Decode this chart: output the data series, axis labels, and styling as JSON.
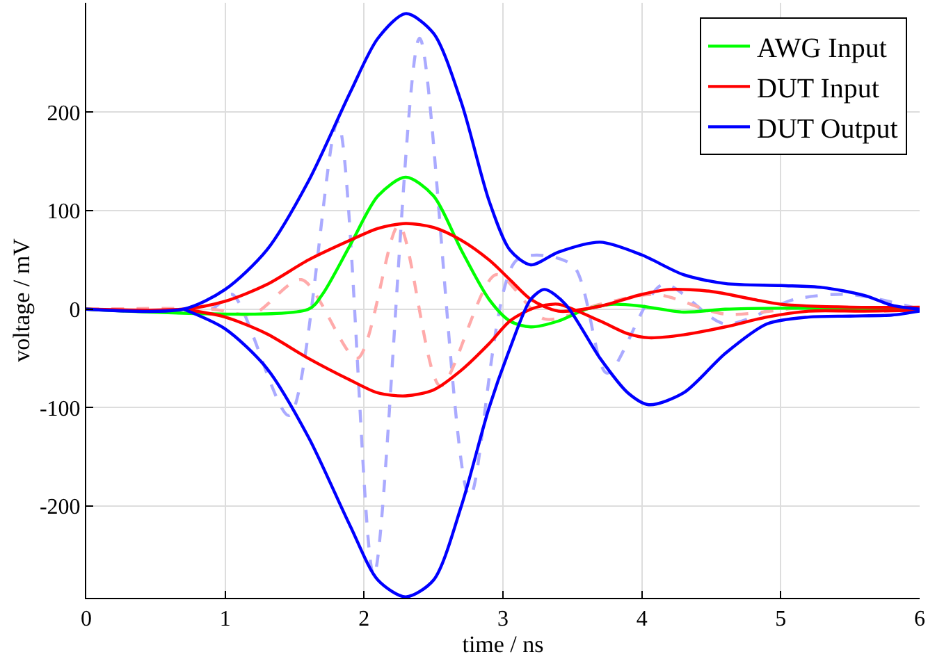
{
  "chart_data": {
    "type": "line",
    "xlabel": "time / ns",
    "ylabel": "voltage / mV",
    "xlim": [
      0,
      6
    ],
    "ylim": [
      -293,
      311
    ],
    "xticks": [
      0,
      1,
      2,
      3,
      4,
      5,
      6
    ],
    "yticks": [
      -200,
      -100,
      0,
      100,
      200
    ],
    "grid": true,
    "legend": "top right",
    "marker": "none",
    "line_style": "solid",
    "series": [
      {
        "color": "#aaaaff",
        "line_style": "dashed",
        "x": [
          0,
          0.9,
          1.05,
          1.46,
          1.81,
          2.07,
          2.4,
          2.76,
          3.1,
          3.5,
          3.75,
          4.15,
          4.6,
          5.1,
          5.5,
          6
        ],
        "values": [
          0,
          0,
          15,
          -108,
          190,
          -270,
          275,
          -190,
          50,
          45,
          -65,
          25,
          -15,
          10,
          15,
          0
        ]
      },
      {
        "color": "#ffaaaa",
        "line_style": "dashed",
        "x": [
          0,
          0.9,
          1.2,
          1.55,
          1.95,
          2.25,
          2.55,
          2.95,
          3.3,
          3.7,
          4.1,
          4.6,
          5.2,
          6
        ],
        "values": [
          0,
          0,
          -5,
          30,
          -50,
          85,
          -78,
          35,
          -10,
          5,
          15,
          -5,
          2,
          0
        ]
      },
      {
        "name": "AWG Input",
        "color": "#00ff00",
        "x": [
          0,
          1.6,
          1.7,
          1.9,
          2.1,
          2.3,
          2.5,
          2.7,
          2.9,
          3.05,
          3.2,
          3.4,
          3.6,
          3.8,
          4.0,
          4.3,
          4.6,
          5.0,
          6
        ],
        "values": [
          0,
          0,
          15,
          65,
          115,
          134,
          115,
          60,
          10,
          -12,
          -18,
          -12,
          0,
          5,
          3,
          -3,
          0,
          1,
          0
        ]
      },
      {
        "name": "DUT Input",
        "color": "#ff0000",
        "x": [
          0,
          0.7,
          1.0,
          1.3,
          1.6,
          1.9,
          2.1,
          2.3,
          2.5,
          2.7,
          2.9,
          3.05,
          3.2,
          3.4,
          3.7,
          4.0,
          4.2,
          4.5,
          4.8,
          5.0,
          5.5,
          6
        ],
        "values": [
          0,
          0,
          8,
          25,
          50,
          70,
          82,
          87,
          83,
          70,
          50,
          30,
          10,
          -2,
          3,
          15,
          20,
          18,
          10,
          5,
          2,
          2
        ]
      },
      {
        "color": "#ff0000",
        "x": [
          0.7,
          1.0,
          1.3,
          1.6,
          1.9,
          2.1,
          2.3,
          2.5,
          2.7,
          2.9,
          3.05,
          3.2,
          3.3,
          3.4,
          3.7,
          3.9,
          4.05,
          4.3,
          4.6,
          4.9,
          5.2,
          5.6,
          6
        ],
        "values": [
          0,
          -8,
          -25,
          -50,
          -72,
          -85,
          -88,
          -82,
          -62,
          -35,
          -12,
          0,
          4,
          5,
          -12,
          -25,
          -29,
          -26,
          -18,
          -8,
          -2,
          -2,
          -1
        ]
      },
      {
        "name": "DUT Output",
        "color": "#0000ff",
        "x": [
          0,
          0.7,
          1.0,
          1.3,
          1.6,
          1.9,
          2.1,
          2.3,
          2.5,
          2.7,
          2.9,
          3.05,
          3.2,
          3.4,
          3.7,
          4.0,
          4.3,
          4.6,
          5.0,
          5.3,
          5.6,
          5.8,
          6
        ],
        "values": [
          0,
          0,
          20,
          60,
          130,
          220,
          275,
          300,
          280,
          210,
          110,
          60,
          45,
          58,
          68,
          55,
          35,
          26,
          24,
          22,
          14,
          4,
          0
        ]
      },
      {
        "color": "#0000ff",
        "x": [
          0.7,
          1.0,
          1.3,
          1.6,
          1.9,
          2.1,
          2.3,
          2.5,
          2.7,
          2.9,
          3.05,
          3.2,
          3.3,
          3.45,
          3.7,
          3.9,
          4.05,
          4.3,
          4.6,
          4.9,
          5.2,
          5.5,
          5.8,
          6
        ],
        "values": [
          0,
          -20,
          -60,
          -130,
          -220,
          -275,
          -292,
          -275,
          -200,
          -100,
          -40,
          10,
          20,
          5,
          -50,
          -85,
          -97,
          -85,
          -45,
          -15,
          -8,
          -7,
          -6,
          -2
        ]
      }
    ]
  }
}
